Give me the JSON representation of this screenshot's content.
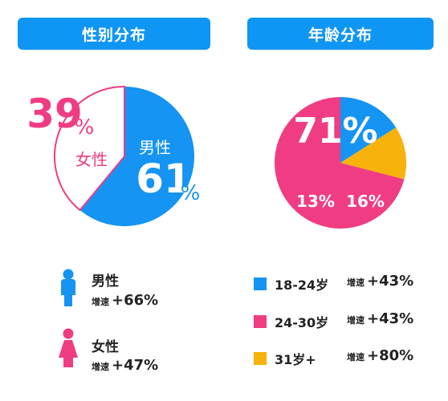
{
  "colors": {
    "blue": "#1594f3",
    "pink": "#f03c83",
    "yellow": "#f7b20c",
    "header": "#0f96f4"
  },
  "chart_data": [
    {
      "type": "pie",
      "title": "性别分布",
      "slices": [
        {
          "label": "男性",
          "value": 61,
          "value_text": "61",
          "unit": "%",
          "color": "#1594f3"
        },
        {
          "label": "女性",
          "value": 39,
          "value_text": "39",
          "unit": "%",
          "color": "#ffffff",
          "outline": "#f03c83"
        }
      ]
    },
    {
      "type": "pie",
      "title": "年龄分布",
      "slices": [
        {
          "label": "18-24岁",
          "value": 16,
          "value_text": "16%",
          "color": "#1594f3"
        },
        {
          "label": "24-30岁",
          "value": 71,
          "value_text": "71%",
          "color": "#f03c83"
        },
        {
          "label": "31岁+",
          "value": 13,
          "value_text": "13%",
          "color": "#f7b20c"
        }
      ]
    }
  ],
  "gender_legend": [
    {
      "label": "男性",
      "growth_word": "增速",
      "growth_value": "+66%",
      "icon": "male-person-icon",
      "color": "#1594f3"
    },
    {
      "label": "女性",
      "growth_word": "增速",
      "growth_value": "+47%",
      "icon": "female-person-icon",
      "color": "#f03c83"
    }
  ],
  "age_legend": [
    {
      "label": "18-24岁",
      "growth_word": "增速",
      "growth_value": "+43%",
      "color": "#1594f3"
    },
    {
      "label": "24-30岁",
      "growth_word": "增速",
      "growth_value": "+43%",
      "color": "#f03c83"
    },
    {
      "label": "31岁+",
      "growth_word": "增速",
      "growth_value": "+80%",
      "color": "#f7b20c"
    }
  ]
}
